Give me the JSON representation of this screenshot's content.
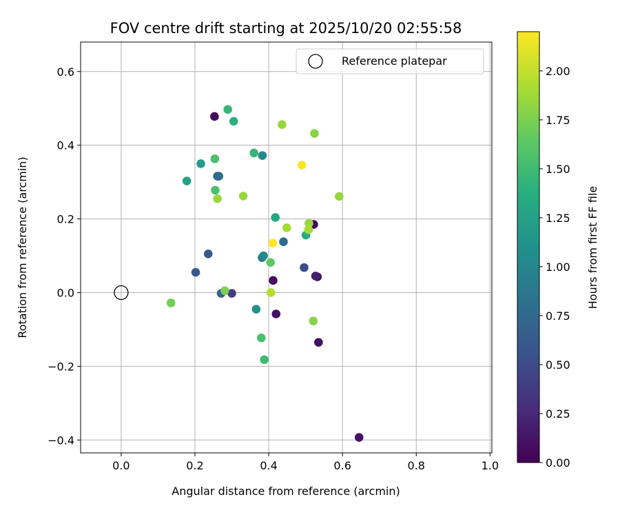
{
  "chart_data": {
    "type": "scatter",
    "title": "FOV centre drift starting at 2025/10/20 02:55:58",
    "xlabel": "Angular distance from reference (arcmin)",
    "ylabel": "Rotation from reference (arcmin)",
    "xlim": [
      -0.11,
      1.005
    ],
    "ylim": [
      -0.435,
      0.68
    ],
    "xticks": [
      0.0,
      0.2,
      0.4,
      0.6,
      0.8,
      1.0
    ],
    "xtick_labels": [
      "0.0",
      "0.2",
      "0.4",
      "0.6",
      "0.8",
      "1.0"
    ],
    "yticks": [
      -0.4,
      -0.2,
      0.0,
      0.2,
      0.4,
      0.6
    ],
    "ytick_labels": [
      "−0.4",
      "−0.2",
      "0.0",
      "0.2",
      "0.4",
      "0.6"
    ],
    "grid": true,
    "legend": {
      "location": "upper right",
      "entries": [
        {
          "label": "Reference platepar",
          "marker": "open-circle"
        }
      ]
    },
    "reference_point": {
      "x": 0.0,
      "y": 0.0
    },
    "colorbar": {
      "label": "Hours from first FF file",
      "colormap": "viridis",
      "range": [
        0.0,
        2.2
      ],
      "ticks": [
        0.0,
        0.25,
        0.5,
        0.75,
        1.0,
        1.25,
        1.5,
        1.75,
        2.0
      ],
      "tick_labels": [
        "0.00",
        "0.25",
        "0.50",
        "0.75",
        "1.00",
        "1.25",
        "1.50",
        "1.75",
        "2.00"
      ]
    },
    "points": [
      {
        "x": 0.253,
        "y": 0.478,
        "hours": 0.05
      },
      {
        "x": 0.645,
        "y": -0.393,
        "hours": 0.1
      },
      {
        "x": 0.535,
        "y": -0.135,
        "hours": 0.1
      },
      {
        "x": 0.42,
        "y": -0.058,
        "hours": 0.1
      },
      {
        "x": 0.412,
        "y": 0.033,
        "hours": 0.08
      },
      {
        "x": 0.532,
        "y": 0.043,
        "hours": 0.1
      },
      {
        "x": 0.527,
        "y": 0.045,
        "hours": 0.2
      },
      {
        "x": 0.522,
        "y": 0.185,
        "hours": 0.05
      },
      {
        "x": 0.3,
        "y": -0.002,
        "hours": 0.4
      },
      {
        "x": 0.496,
        "y": 0.068,
        "hours": 0.5
      },
      {
        "x": 0.271,
        "y": -0.002,
        "hours": 0.7
      },
      {
        "x": 0.202,
        "y": 0.055,
        "hours": 0.62
      },
      {
        "x": 0.236,
        "y": 0.105,
        "hours": 0.62
      },
      {
        "x": 0.261,
        "y": 0.316,
        "hours": 0.7
      },
      {
        "x": 0.265,
        "y": 0.316,
        "hours": 0.78
      },
      {
        "x": 0.44,
        "y": 0.138,
        "hours": 0.78
      },
      {
        "x": 0.382,
        "y": 0.095,
        "hours": 0.9
      },
      {
        "x": 0.386,
        "y": 0.1,
        "hours": 1.0
      },
      {
        "x": 0.383,
        "y": 0.372,
        "hours": 1.05
      },
      {
        "x": 0.366,
        "y": -0.045,
        "hours": 1.1
      },
      {
        "x": 0.216,
        "y": 0.35,
        "hours": 1.2
      },
      {
        "x": 0.178,
        "y": 0.303,
        "hours": 1.25
      },
      {
        "x": 0.418,
        "y": 0.204,
        "hours": 1.3
      },
      {
        "x": 0.501,
        "y": 0.156,
        "hours": 1.35
      },
      {
        "x": 0.289,
        "y": 0.497,
        "hours": 1.45
      },
      {
        "x": 0.305,
        "y": 0.465,
        "hours": 1.4
      },
      {
        "x": 0.36,
        "y": 0.379,
        "hours": 1.45
      },
      {
        "x": 0.254,
        "y": 0.363,
        "hours": 1.55
      },
      {
        "x": 0.255,
        "y": 0.278,
        "hours": 1.55
      },
      {
        "x": 0.388,
        "y": -0.182,
        "hours": 1.5
      },
      {
        "x": 0.38,
        "y": -0.123,
        "hours": 1.55
      },
      {
        "x": 0.405,
        "y": 0.082,
        "hours": 1.65
      },
      {
        "x": 0.281,
        "y": 0.005,
        "hours": 1.75
      },
      {
        "x": 0.135,
        "y": -0.028,
        "hours": 1.72
      },
      {
        "x": 0.261,
        "y": 0.255,
        "hours": 1.85
      },
      {
        "x": 0.331,
        "y": 0.262,
        "hours": 1.85
      },
      {
        "x": 0.436,
        "y": 0.456,
        "hours": 1.85
      },
      {
        "x": 0.524,
        "y": 0.432,
        "hours": 1.8
      },
      {
        "x": 0.591,
        "y": 0.261,
        "hours": 1.85
      },
      {
        "x": 0.449,
        "y": 0.176,
        "hours": 1.9
      },
      {
        "x": 0.509,
        "y": 0.188,
        "hours": 1.85
      },
      {
        "x": 0.508,
        "y": 0.171,
        "hours": 1.9
      },
      {
        "x": 0.521,
        "y": -0.077,
        "hours": 1.8
      },
      {
        "x": 0.406,
        "y": 0.0,
        "hours": 1.95
      },
      {
        "x": 0.49,
        "y": 0.346,
        "hours": 2.2
      },
      {
        "x": 0.411,
        "y": 0.134,
        "hours": 2.2
      }
    ]
  }
}
